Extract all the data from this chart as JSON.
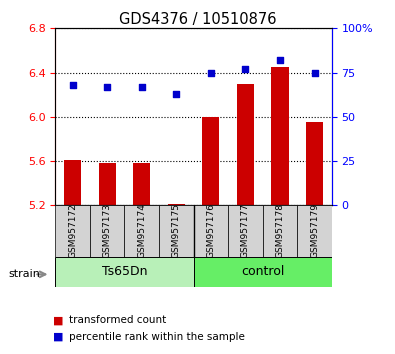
{
  "title": "GDS4376 / 10510876",
  "samples": [
    "GSM957172",
    "GSM957173",
    "GSM957174",
    "GSM957175",
    "GSM957176",
    "GSM957177",
    "GSM957178",
    "GSM957179"
  ],
  "groups": [
    "Ts65Dn",
    "Ts65Dn",
    "Ts65Dn",
    "Ts65Dn",
    "control",
    "control",
    "control",
    "control"
  ],
  "transformed_count": [
    5.61,
    5.585,
    5.585,
    5.21,
    6.0,
    6.3,
    6.45,
    5.95
  ],
  "percentile_rank": [
    68,
    67,
    67,
    63,
    75,
    77,
    82,
    75
  ],
  "ylim_left": [
    5.2,
    6.8
  ],
  "ylim_right": [
    0,
    100
  ],
  "yticks_left": [
    5.2,
    5.6,
    6.0,
    6.4,
    6.8
  ],
  "yticks_right": [
    0,
    25,
    50,
    75,
    100
  ],
  "ytick_labels_right": [
    "0",
    "25",
    "50",
    "75",
    "100%"
  ],
  "bar_color": "#cc0000",
  "scatter_color": "#0000cc",
  "ts65dn_color": "#b8f0b8",
  "control_color": "#66ee66",
  "legend_items": [
    "transformed count",
    "percentile rank within the sample"
  ],
  "strain_label": "strain",
  "bar_width": 0.5,
  "base_value": 5.2
}
